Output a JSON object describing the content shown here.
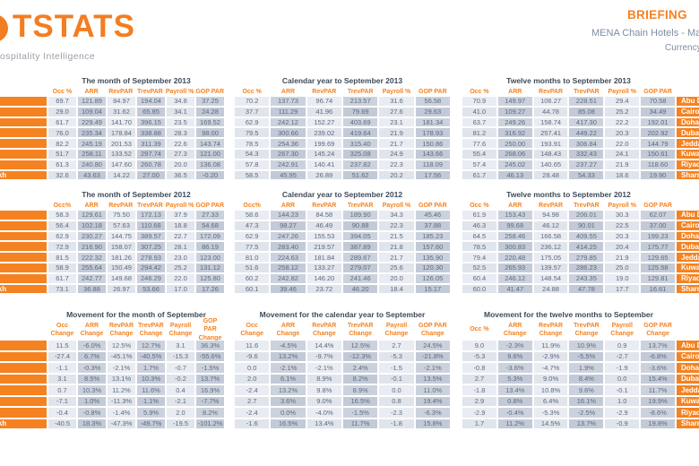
{
  "header": {
    "logo_text": "TSTATS",
    "tagline": "ospitality Intelligence",
    "report_type": "BRIEFING",
    "report_subtitle": "MENA Chain Hotels - Mark",
    "currency_label": "Currency"
  },
  "colors": {
    "accent_orange": "#f58220",
    "title_slate": "#3e4a58",
    "cell_dark": "#ccd2dd",
    "cell_light": "#e9ecf2"
  },
  "row_labels": [
    "Abu Dhabi",
    "Cairo",
    "Doha",
    "Dubai",
    "Jeddah",
    "Kuwait",
    "Riyadh",
    "Sharm El Sheikh"
  ],
  "bands": [
    {
      "tables": [
        {
          "title": "The month of September 2013",
          "headers": [
            "Occ %",
            "ARR",
            "RevPAR",
            "TrevPAR",
            "Payroll %",
            "GOP PAR"
          ],
          "rows": [
            [
              "69.7",
              "121.89",
              "84.97",
              "194.04",
              "34.8",
              "37.25"
            ],
            [
              "29.0",
              "109.04",
              "31.62",
              "65.85",
              "34.1",
              "24.28"
            ],
            [
              "61.7",
              "229.49",
              "141.70",
              "396.15",
              "23.5",
              "169.52"
            ],
            [
              "76.0",
              "235.34",
              "178.84",
              "338.88",
              "28.3",
              "98.00"
            ],
            [
              "82.2",
              "245.19",
              "201.53",
              "311.39",
              "22.6",
              "143.74"
            ],
            [
              "51.7",
              "258.11",
              "133.52",
              "297.74",
              "27.3",
              "121.00"
            ],
            [
              "61.3",
              "240.80",
              "147.60",
              "260.78",
              "20.0",
              "136.08"
            ],
            [
              "32.6",
              "43.63",
              "14.22",
              "27.00",
              "36.5",
              "-0.20"
            ]
          ]
        },
        {
          "title": "Calendar year to September 2013",
          "headers": [
            "Occ %",
            "ARR",
            "RevPAR",
            "TrevPAR",
            "Payroll %",
            "GOP PAR"
          ],
          "rows": [
            [
              "70.2",
              "137.73",
              "96.74",
              "213.57",
              "31.6",
              "56.58"
            ],
            [
              "37.7",
              "111.29",
              "41.96",
              "79.69",
              "27.6",
              "29.63"
            ],
            [
              "62.9",
              "242.12",
              "152.27",
              "403.69",
              "23.1",
              "181.34"
            ],
            [
              "79.5",
              "300.66",
              "239.02",
              "419.64",
              "21.9",
              "178.93"
            ],
            [
              "78.5",
              "254.36",
              "199.69",
              "315.40",
              "21.7",
              "150.86"
            ],
            [
              "54.3",
              "267.30",
              "145.24",
              "325.08",
              "24.9",
              "143.66"
            ],
            [
              "57.8",
              "242.91",
              "140.41",
              "237.82",
              "22.3",
              "118.09"
            ],
            [
              "58.5",
              "45.95",
              "26.89",
              "51.62",
              "20.2",
              "17.56"
            ]
          ]
        },
        {
          "title": "Twelve months to September 2013",
          "headers": [
            "Occ %",
            "ARR",
            "RevPAR",
            "TrevPAR",
            "Payroll %",
            "GOP PAR"
          ],
          "rows": [
            [
              "70.9",
              "149.97",
              "106.27",
              "228.51",
              "29.4",
              "70.58"
            ],
            [
              "41.0",
              "109.27",
              "44.78",
              "85.08",
              "25.2",
              "34.49"
            ],
            [
              "63.7",
              "249.26",
              "158.74",
              "417.30",
              "22.2",
              "192.01"
            ],
            [
              "81.2",
              "316.92",
              "257.41",
              "449.22",
              "20.3",
              "202.92"
            ],
            [
              "77.6",
              "250.00",
              "193.91",
              "306.84",
              "22.0",
              "144.79"
            ],
            [
              "55.4",
              "268.06",
              "148.43",
              "332.43",
              "24.1",
              "150.61"
            ],
            [
              "57.4",
              "245.02",
              "140.65",
              "237.27",
              "21.9",
              "118.60"
            ],
            [
              "61.7",
              "46.13",
              "28.48",
              "54.33",
              "18.6",
              "19.90"
            ]
          ]
        }
      ]
    },
    {
      "tables": [
        {
          "title": "The month of September 2012",
          "headers": [
            "Occ%",
            "ARR",
            "RevPAR",
            "TrevPAR",
            "Payroll %",
            "GOP PAR"
          ],
          "rows": [
            [
              "58.3",
              "129.61",
              "75.50",
              "172.13",
              "37.9",
              "27.33"
            ],
            [
              "56.4",
              "102.18",
              "57.63",
              "110.68",
              "18.8",
              "54.68"
            ],
            [
              "62.9",
              "230.27",
              "144.75",
              "389.57",
              "22.7",
              "172.09"
            ],
            [
              "72.9",
              "216.90",
              "158.07",
              "307.25",
              "28.1",
              "86.19"
            ],
            [
              "81.5",
              "222.32",
              "181.26",
              "278.93",
              "23.0",
              "123.00"
            ],
            [
              "58.9",
              "255.64",
              "150.49",
              "294.42",
              "25.2",
              "131.12"
            ],
            [
              "61.7",
              "242.77",
              "149.68",
              "246.29",
              "22.0",
              "125.80"
            ],
            [
              "73.1",
              "36.88",
              "26.97",
              "53.66",
              "17.0",
              "17.26"
            ]
          ]
        },
        {
          "title": "Calendar year to September 2012",
          "headers": [
            "Occ%",
            "ARR",
            "RevPAR",
            "TrevPAR",
            "Payroll %",
            "GOP PAR"
          ],
          "rows": [
            [
              "58.6",
              "144.23",
              "84.58",
              "189.90",
              "34.3",
              "45.46"
            ],
            [
              "47.3",
              "98.27",
              "46.49",
              "90.88",
              "22.3",
              "37.88"
            ],
            [
              "62.9",
              "247.26",
              "155.53",
              "394.05",
              "21.5",
              "185.23"
            ],
            [
              "77.5",
              "283.40",
              "219.57",
              "387.89",
              "21.8",
              "157.60"
            ],
            [
              "81.0",
              "224.63",
              "181.84",
              "289.67",
              "21.7",
              "135.90"
            ],
            [
              "51.6",
              "258.12",
              "133.27",
              "279.07",
              "25.6",
              "120.30"
            ],
            [
              "60.2",
              "242.82",
              "146.20",
              "241.46",
              "20.0",
              "126.05"
            ],
            [
              "60.1",
              "39.46",
              "23.72",
              "46.20",
              "18.4",
              "15.17"
            ]
          ]
        },
        {
          "title": "Twelve months to September 2012",
          "headers": [
            "Occ %",
            "ARR",
            "RevPAR",
            "TrevPAR",
            "Payroll %",
            "GOP PAR"
          ],
          "rows": [
            [
              "61.9",
              "153.43",
              "94.98",
              "206.01",
              "30.3",
              "62.07"
            ],
            [
              "46.3",
              "99.68",
              "46.12",
              "90.01",
              "22.5",
              "37.00"
            ],
            [
              "64.5",
              "258.46",
              "166.58",
              "409.55",
              "20.3",
              "199.23"
            ],
            [
              "78.5",
              "300.83",
              "236.12",
              "414.25",
              "20.4",
              "175.77"
            ],
            [
              "79.4",
              "220.48",
              "175.05",
              "279.85",
              "21.9",
              "129.65"
            ],
            [
              "52.5",
              "265.93",
              "139.57",
              "286.23",
              "25.0",
              "125.58"
            ],
            [
              "60.4",
              "246.12",
              "148.54",
              "243.35",
              "19.0",
              "129.81"
            ],
            [
              "60.0",
              "41.47",
              "24.88",
              "47.78",
              "17.7",
              "16.61"
            ]
          ]
        }
      ]
    },
    {
      "tables": [
        {
          "title": "Movement for the month of September",
          "headers": [
            "Occ Change",
            "ARR Change",
            "RevPAR Change",
            "TrevPAR Change",
            "Payroll Change",
            "GOP PAR Change"
          ],
          "rows": [
            [
              "11.5",
              "-6.0%",
              "12.5%",
              "12.7%",
              "3.1",
              "36.3%"
            ],
            [
              "-27.4",
              "6.7%",
              "-45.1%",
              "-40.5%",
              "-15.3",
              "-55.6%"
            ],
            [
              "-1.1",
              "-0.3%",
              "-2.1%",
              "1.7%",
              "-0.7",
              "-1.5%"
            ],
            [
              "3.1",
              "8.5%",
              "13.1%",
              "10.3%",
              "-0.2",
              "13.7%"
            ],
            [
              "0.7",
              "10.3%",
              "11.2%",
              "11.6%",
              "0.4",
              "16.9%"
            ],
            [
              "-7.1",
              "1.0%",
              "-11.3%",
              "1.1%",
              "-2.1",
              "-7.7%"
            ],
            [
              "-0.4",
              "-0.8%",
              "-1.4%",
              "5.9%",
              "2.0",
              "8.2%"
            ],
            [
              "-40.5",
              "18.3%",
              "-47.3%",
              "-49.7%",
              "-19.5",
              "-101.2%"
            ]
          ]
        },
        {
          "title": "Movement for the calendar year to September",
          "headers": [
            "Occ Change",
            "ARR Change",
            "RevPAR Change",
            "TrevPAR Change",
            "Payroll Change",
            "GOP PAR Change"
          ],
          "rows": [
            [
              "11.6",
              "-4.5%",
              "14.4%",
              "12.5%",
              "2.7",
              "24.5%"
            ],
            [
              "-9.6",
              "13.2%",
              "-9.7%",
              "-12.3%",
              "-5.3",
              "-21.8%"
            ],
            [
              "0.0",
              "-2.1%",
              "-2.1%",
              "2.4%",
              "-1.5",
              "-2.1%"
            ],
            [
              "2.0",
              "6.1%",
              "8.9%",
              "8.2%",
              "-0.1",
              "13.5%"
            ],
            [
              "-2.4",
              "13.2%",
              "9.8%",
              "8.9%",
              "0.0",
              "11.0%"
            ],
            [
              "2.7",
              "3.6%",
              "9.0%",
              "16.5%",
              "0.8",
              "19.4%"
            ],
            [
              "-2.4",
              "0.0%",
              "-4.0%",
              "-1.5%",
              "-2.3",
              "-6.3%"
            ],
            [
              "-1.6",
              "16.5%",
              "13.4%",
              "11.7%",
              "-1.8",
              "15.8%"
            ]
          ]
        },
        {
          "title": "Movement for the twelve months to September",
          "headers": [
            "Occ %",
            "ARR Change",
            "RevPAR Change",
            "TrevPAR Change",
            "Payroll Change",
            "GOP PAR Change"
          ],
          "rows": [
            [
              "9.0",
              "-2.3%",
              "11.9%",
              "10.9%",
              "0.9",
              "13.7%"
            ],
            [
              "-5.3",
              "9.6%",
              "-2.9%",
              "-5.5%",
              "-2.7",
              "-6.8%"
            ],
            [
              "-0.8",
              "-3.6%",
              "-4.7%",
              "1.9%",
              "-1.9",
              "-3.6%"
            ],
            [
              "2.7",
              "5.3%",
              "9.0%",
              "8.4%",
              "0.0",
              "15.4%"
            ],
            [
              "-1.8",
              "13.4%",
              "10.8%",
              "9.6%",
              "-0.1",
              "11.7%"
            ],
            [
              "2.9",
              "0.8%",
              "6.4%",
              "16.1%",
              "1.0",
              "19.9%"
            ],
            [
              "-2.9",
              "-0.4%",
              "-5.3%",
              "-2.5%",
              "-2.9",
              "-8.6%"
            ],
            [
              "1.7",
              "11.2%",
              "14.5%",
              "13.7%",
              "-0.9",
              "19.8%"
            ]
          ]
        }
      ]
    }
  ]
}
